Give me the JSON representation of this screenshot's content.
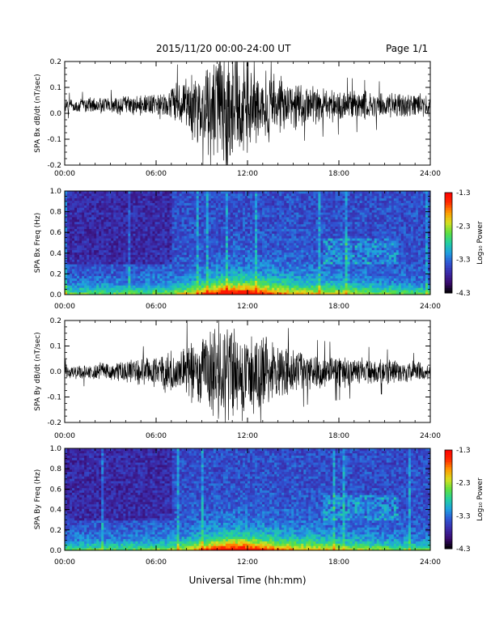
{
  "header": {
    "date_range": "2015/11/20  00:00-24:00 UT",
    "page": "Page 1/1"
  },
  "chart_data": [
    {
      "type": "line",
      "panel": "time series",
      "ylabel": "SPA Bx dB/dt (nT/sec)",
      "xlim": [
        0,
        24
      ],
      "ylim": [
        -0.2,
        0.2
      ],
      "xticks": [
        "00:00",
        "06:00",
        "12:00",
        "18:00",
        "24:00"
      ],
      "yticks": [
        "-0.2",
        "-0.1",
        "0.0",
        "0.1",
        "0.2"
      ],
      "baseline": 0.03,
      "envelope": [
        {
          "hour": 0,
          "amp": 0.03
        },
        {
          "hour": 4,
          "amp": 0.04
        },
        {
          "hour": 6,
          "amp": 0.05
        },
        {
          "hour": 8,
          "amp": 0.12
        },
        {
          "hour": 9,
          "amp": 0.18
        },
        {
          "hour": 10,
          "amp": 0.25
        },
        {
          "hour": 11,
          "amp": 0.3
        },
        {
          "hour": 12,
          "amp": 0.22
        },
        {
          "hour": 14,
          "amp": 0.12
        },
        {
          "hour": 16,
          "amp": 0.08
        },
        {
          "hour": 20,
          "amp": 0.06
        },
        {
          "hour": 24,
          "amp": 0.05
        }
      ]
    },
    {
      "type": "heatmap",
      "panel": "spectrogram",
      "ylabel": "SPA Bx Freq (Hz)",
      "xlim": [
        0,
        24
      ],
      "ylim": [
        0,
        1.0
      ],
      "xticks": [
        "00:00",
        "06:00",
        "12:00",
        "18:00",
        "24:00"
      ],
      "yticks": [
        "0.0",
        "0.2",
        "0.4",
        "0.6",
        "0.8",
        "1.0"
      ],
      "colorbar": {
        "label": "Log₁₀ Power",
        "range": [
          -4.3,
          -1.3
        ],
        "ticks": [
          "-1.3",
          "-2.3",
          "-3.3",
          "-4.3"
        ]
      },
      "colors": [
        "#000000",
        "#3a0a6e",
        "#3b2aa8",
        "#2f55d4",
        "#1fa0e0",
        "#22d0a0",
        "#5ee040",
        "#d8e020",
        "#ff9a00",
        "#ff2a00",
        "#ff0000"
      ]
    },
    {
      "type": "line",
      "panel": "time series",
      "ylabel": "SPA By dB/dt (nT/sec)",
      "xlim": [
        0,
        24
      ],
      "ylim": [
        -0.2,
        0.2
      ],
      "xticks": [
        "00:00",
        "06:00",
        "12:00",
        "18:00",
        "24:00"
      ],
      "yticks": [
        "-0.2",
        "-0.1",
        "0.0",
        "0.1",
        "0.2"
      ],
      "baseline": 0.0,
      "envelope": [
        {
          "hour": 0,
          "amp": 0.03
        },
        {
          "hour": 4,
          "amp": 0.05
        },
        {
          "hour": 6,
          "amp": 0.07
        },
        {
          "hour": 8,
          "amp": 0.13
        },
        {
          "hour": 9,
          "amp": 0.17
        },
        {
          "hour": 10,
          "amp": 0.22
        },
        {
          "hour": 11,
          "amp": 0.25
        },
        {
          "hour": 12,
          "amp": 0.2
        },
        {
          "hour": 14,
          "amp": 0.12
        },
        {
          "hour": 16,
          "amp": 0.08
        },
        {
          "hour": 20,
          "amp": 0.06
        },
        {
          "hour": 24,
          "amp": 0.04
        }
      ]
    },
    {
      "type": "heatmap",
      "panel": "spectrogram",
      "ylabel": "SPA By Freq (Hz)",
      "xlim": [
        0,
        24
      ],
      "ylim": [
        0,
        1.0
      ],
      "xticks": [
        "00:00",
        "06:00",
        "12:00",
        "18:00",
        "24:00"
      ],
      "yticks": [
        "0.0",
        "0.2",
        "0.4",
        "0.6",
        "0.8",
        "1.0"
      ],
      "colorbar": {
        "label": "Log₁₀ Power",
        "range": [
          -4.3,
          -1.3
        ],
        "ticks": [
          "-1.3",
          "-2.3",
          "-3.3",
          "-4.3"
        ]
      },
      "colors": [
        "#000000",
        "#3a0a6e",
        "#3b2aa8",
        "#2f55d4",
        "#1fa0e0",
        "#22d0a0",
        "#5ee040",
        "#d8e020",
        "#ff9a00",
        "#ff2a00",
        "#ff0000"
      ]
    }
  ],
  "footer": {
    "xlabel": "Universal Time (hh:mm)"
  }
}
